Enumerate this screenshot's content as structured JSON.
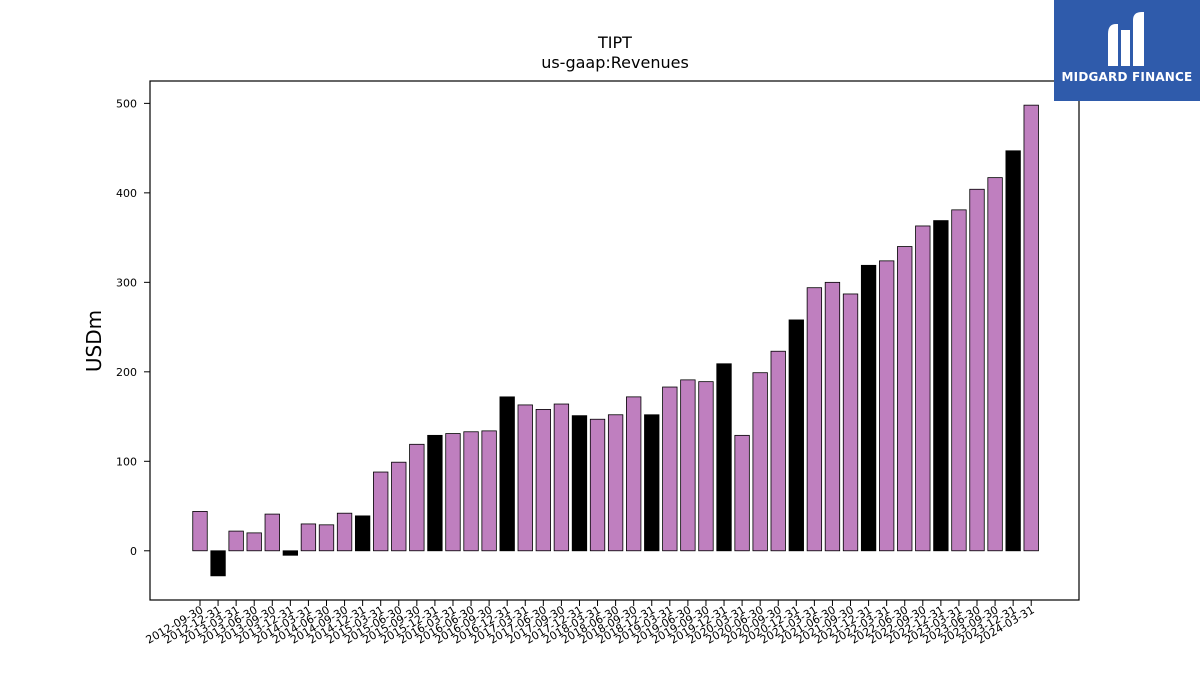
{
  "brand": {
    "name": "MIDGARD FINANCE",
    "bg_color": "#2f5bab"
  },
  "chart_data": {
    "type": "bar",
    "title": "TIPT",
    "subtitle": "us-gaap:Revenues",
    "xlabel": "",
    "ylabel": "USDm",
    "ylim": [
      -55,
      525
    ],
    "yticks": [
      0,
      100,
      200,
      300,
      400,
      500
    ],
    "grid": false,
    "colors": {
      "quarter": "#bf7fbf",
      "annual": "#000000"
    },
    "categories": [
      "2012-09-30",
      "2012-12-31",
      "2013-03-31",
      "2013-06-30",
      "2013-09-30",
      "2013-12-31",
      "2014-03-31",
      "2014-06-30",
      "2014-09-30",
      "2014-12-31",
      "2015-03-31",
      "2015-06-30",
      "2015-09-30",
      "2015-12-31",
      "2016-03-31",
      "2016-06-30",
      "2016-09-30",
      "2016-12-31",
      "2017-03-31",
      "2017-06-30",
      "2017-09-30",
      "2017-12-31",
      "2018-03-31",
      "2018-06-30",
      "2018-09-30",
      "2018-12-31",
      "2019-03-31",
      "2019-06-30",
      "2019-09-30",
      "2019-12-31",
      "2020-03-31",
      "2020-06-30",
      "2020-09-30",
      "2020-12-31",
      "2021-03-31",
      "2021-06-30",
      "2021-09-30",
      "2021-12-31",
      "2022-03-31",
      "2022-06-30",
      "2022-09-30",
      "2022-12-31",
      "2023-03-31",
      "2023-06-30",
      "2023-09-30",
      "2023-12-31",
      "2024-03-31"
    ],
    "values": [
      44,
      -28,
      22,
      20,
      41,
      -5,
      30,
      29,
      42,
      39,
      88,
      99,
      119,
      129,
      131,
      133,
      134,
      172,
      163,
      158,
      164,
      151,
      147,
      152,
      172,
      152,
      183,
      191,
      189,
      209,
      129,
      199,
      223,
      258,
      294,
      300,
      287,
      319,
      324,
      340,
      363,
      369,
      381,
      404,
      417,
      447,
      498
    ],
    "bar_kind": [
      "q",
      "a",
      "q",
      "q",
      "q",
      "a",
      "q",
      "q",
      "q",
      "a",
      "q",
      "q",
      "q",
      "a",
      "q",
      "q",
      "q",
      "a",
      "q",
      "q",
      "q",
      "a",
      "q",
      "q",
      "q",
      "a",
      "q",
      "q",
      "q",
      "a",
      "q",
      "q",
      "q",
      "a",
      "q",
      "q",
      "q",
      "a",
      "q",
      "q",
      "q",
      "a",
      "q",
      "q",
      "q",
      "a",
      "q"
    ]
  }
}
